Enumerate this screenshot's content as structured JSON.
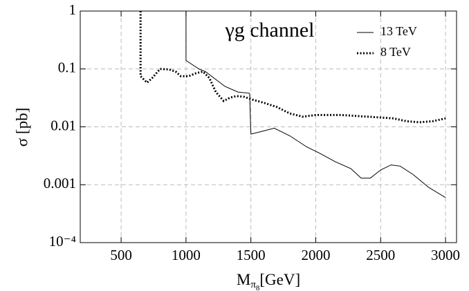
{
  "chart_data": {
    "type": "line",
    "annotation": "γg channel",
    "y_label": "σ [pb]",
    "x_label": {
      "main": "M",
      "sub": "π",
      "subsub": "8",
      "unit": "[GeV]"
    },
    "xlim": [
      185,
      3085
    ],
    "xticks": [
      500,
      1000,
      1500,
      2000,
      2500,
      3000
    ],
    "ylim": [
      0.0001,
      1
    ],
    "log_y": true,
    "yticks": [
      1,
      0.1,
      0.01,
      0.001,
      {
        "value": 0.0001,
        "label": "10⁻⁴"
      }
    ],
    "grid": true,
    "legend": "upper right",
    "series": [
      {
        "name": "13 TeV",
        "color": "#000000",
        "style": "solid",
        "x": [
          1000,
          1000,
          1100,
          1150,
          1300,
          1400,
          1490,
          1500,
          1600,
          1680,
          1800,
          1930,
          2030,
          2150,
          2270,
          2350,
          2420,
          2500,
          2580,
          2650,
          2750,
          2870,
          3000
        ],
        "values": [
          1,
          0.14,
          0.1,
          0.09,
          0.05,
          0.04,
          0.038,
          0.0075,
          0.0085,
          0.0095,
          0.007,
          0.0045,
          0.0035,
          0.0025,
          0.0019,
          0.0013,
          0.0013,
          0.0018,
          0.0022,
          0.0021,
          0.0015,
          0.0009,
          0.0006
        ]
      },
      {
        "name": "8 TeV",
        "color": "#000000",
        "style": "dotted",
        "x": [
          650,
          650,
          700,
          740,
          800,
          870,
          920,
          960,
          1020,
          1080,
          1130,
          1180,
          1230,
          1290,
          1340,
          1390,
          1450,
          1500,
          1600,
          1700,
          1800,
          1900,
          2000,
          2100,
          2200,
          2300,
          2400,
          2500,
          2600,
          2700,
          2800,
          2900,
          3000
        ],
        "values": [
          1,
          0.075,
          0.058,
          0.07,
          0.1,
          0.098,
          0.09,
          0.075,
          0.075,
          0.085,
          0.09,
          0.07,
          0.04,
          0.028,
          0.032,
          0.034,
          0.033,
          0.03,
          0.026,
          0.022,
          0.017,
          0.015,
          0.016,
          0.016,
          0.016,
          0.0155,
          0.015,
          0.0145,
          0.014,
          0.0125,
          0.012,
          0.0125,
          0.014
        ]
      }
    ]
  }
}
